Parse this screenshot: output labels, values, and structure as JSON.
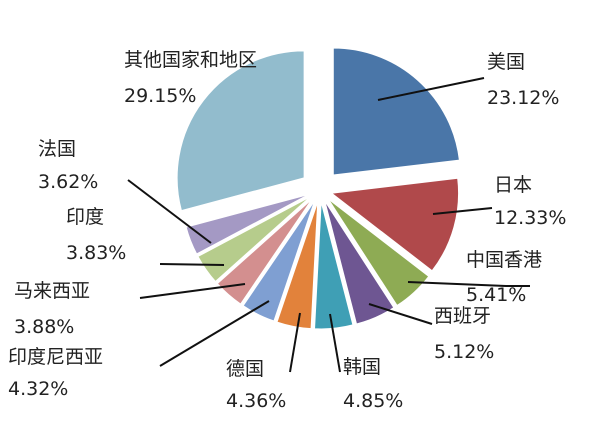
{
  "chart_data": {
    "type": "pie",
    "title": "",
    "series": [
      {
        "slices": [
          {
            "label": "美国",
            "value": 23.12,
            "text": "23.12%",
            "color": "#4a76a8"
          },
          {
            "label": "日本",
            "value": 12.33,
            "text": "12.33%",
            "color": "#b0494b"
          },
          {
            "label": "中国香港",
            "value": 5.41,
            "text": "5.41%",
            "color": "#8eab54"
          },
          {
            "label": "西班牙",
            "value": 5.12,
            "text": "5.12%",
            "color": "#6e5692"
          },
          {
            "label": "韩国",
            "value": 4.85,
            "text": "4.85%",
            "color": "#3f9fb5"
          },
          {
            "label": "德国",
            "value": 4.36,
            "text": "4.36%",
            "color": "#e2823b"
          },
          {
            "label": "印度尼西亚",
            "value": 4.32,
            "text": "4.32%",
            "color": "#7f9fd2"
          },
          {
            "label": "马来西亚",
            "value": 3.88,
            "text": "3.88%",
            "color": "#d38f8f"
          },
          {
            "label": "印度",
            "value": 3.83,
            "text": "3.83%",
            "color": "#b6cc8c"
          },
          {
            "label": "法国",
            "value": 3.62,
            "text": "3.62%",
            "color": "#a499c4"
          },
          {
            "label": "其他国家和地区",
            "value": 29.15,
            "text": "29.15%",
            "color": "#92bccd"
          }
        ]
      }
    ],
    "exploded": true,
    "start": "12 o'clock",
    "direction": "clockwise",
    "legend": "none"
  }
}
